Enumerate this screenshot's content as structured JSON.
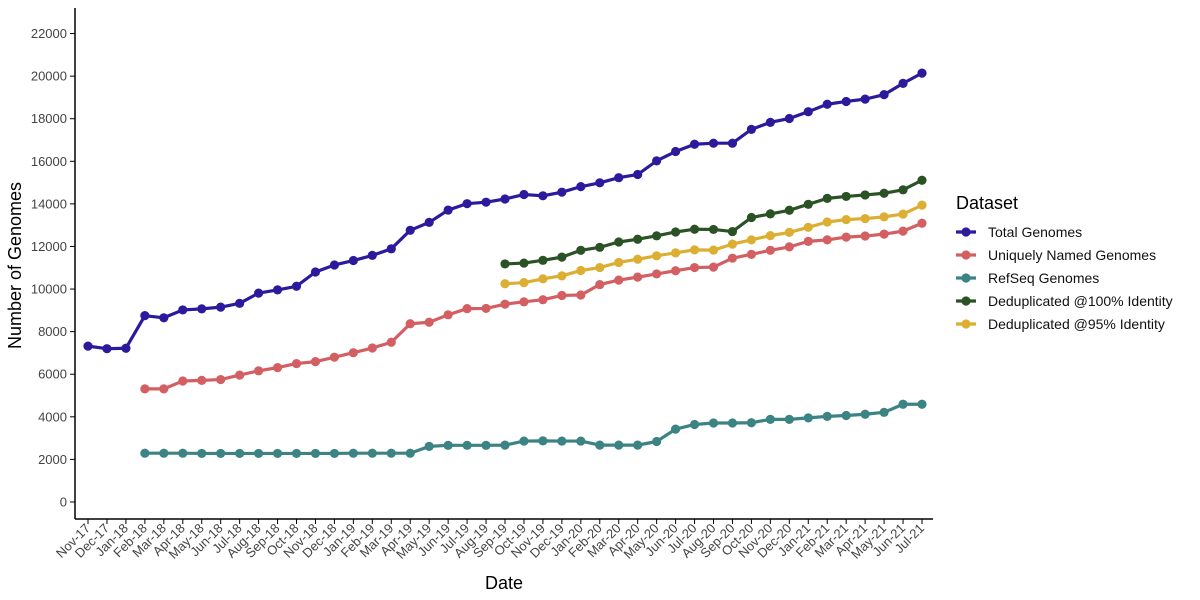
{
  "chart_data": {
    "type": "line",
    "title": "",
    "xlabel": "Date",
    "ylabel": "Number of Genomes",
    "ylim": [
      -800,
      23200
    ],
    "yticks": [
      0,
      2000,
      4000,
      6000,
      8000,
      10000,
      12000,
      14000,
      16000,
      18000,
      20000,
      22000
    ],
    "grid": false,
    "legend": {
      "title": "Dataset",
      "placement": "right"
    },
    "categories": [
      "Nov-17",
      "Dec-17",
      "Jan-18",
      "Feb-18",
      "Mar-18",
      "Apr-18",
      "May-18",
      "Jun-18",
      "Jul-18",
      "Aug-18",
      "Sep-18",
      "Oct-18",
      "Nov-18",
      "Dec-18",
      "Jan-19",
      "Feb-19",
      "Mar-19",
      "Apr-19",
      "May-19",
      "Jun-19",
      "Jul-19",
      "Aug-19",
      "Sep-19",
      "Oct-19",
      "Nov-19",
      "Dec-19",
      "Jan-20",
      "Feb-20",
      "Mar-20",
      "Apr-20",
      "May-20",
      "Jun-20",
      "Jul-20",
      "Aug-20",
      "Sep-20",
      "Oct-20",
      "Nov-20",
      "Dec-20",
      "Jan-21",
      "Feb-21",
      "Mar-21",
      "Apr-21",
      "May-21",
      "Jun-21",
      "Jul-21"
    ],
    "series": [
      {
        "name": "Total Genomes",
        "color": "#2b1b9c",
        "values": [
          7320,
          7200,
          7220,
          8750,
          8650,
          9020,
          9070,
          9150,
          9330,
          9810,
          9960,
          10130,
          10800,
          11130,
          11340,
          11580,
          11890,
          12760,
          13130,
          13710,
          14010,
          14080,
          14230,
          14440,
          14380,
          14550,
          14810,
          14990,
          15230,
          15380,
          16020,
          16460,
          16800,
          16850,
          16850,
          17500,
          17830,
          18010,
          18330,
          18680,
          18810,
          18920,
          19130,
          19660,
          20140
        ]
      },
      {
        "name": "Uniquely Named Genomes",
        "color": "#d45f63",
        "values": [
          null,
          null,
          null,
          5310,
          5310,
          5680,
          5710,
          5750,
          5960,
          6160,
          6310,
          6500,
          6590,
          6800,
          7010,
          7230,
          7500,
          8370,
          8440,
          8790,
          9080,
          9090,
          9290,
          9400,
          9500,
          9700,
          9720,
          10210,
          10420,
          10560,
          10710,
          10860,
          11010,
          11030,
          11450,
          11630,
          11820,
          11980,
          12240,
          12310,
          12440,
          12490,
          12580,
          12720,
          13090
        ]
      },
      {
        "name": "RefSeq Genomes",
        "color": "#3c8383",
        "values": [
          null,
          null,
          null,
          2290,
          2290,
          2290,
          2280,
          2280,
          2280,
          2280,
          2280,
          2280,
          2280,
          2280,
          2290,
          2290,
          2290,
          2290,
          2610,
          2660,
          2660,
          2660,
          2670,
          2860,
          2870,
          2860,
          2860,
          2670,
          2670,
          2670,
          2840,
          3420,
          3640,
          3710,
          3710,
          3720,
          3880,
          3880,
          3950,
          4020,
          4060,
          4120,
          4210,
          4590,
          4590
        ]
      },
      {
        "name": "Deduplicated @100% Identity",
        "color": "#2a5225",
        "values": [
          null,
          null,
          null,
          null,
          null,
          null,
          null,
          null,
          null,
          null,
          null,
          null,
          null,
          null,
          null,
          null,
          null,
          null,
          null,
          null,
          null,
          null,
          11180,
          11220,
          11350,
          11500,
          11820,
          11960,
          12210,
          12340,
          12500,
          12680,
          12810,
          12800,
          12700,
          13360,
          13530,
          13700,
          13980,
          14260,
          14350,
          14420,
          14500,
          14660,
          15110
        ]
      },
      {
        "name": "Deduplicated @95% Identity",
        "color": "#dcae32",
        "values": [
          null,
          null,
          null,
          null,
          null,
          null,
          null,
          null,
          null,
          null,
          null,
          null,
          null,
          null,
          null,
          null,
          null,
          null,
          null,
          null,
          null,
          null,
          10250,
          10300,
          10480,
          10620,
          10870,
          11010,
          11250,
          11400,
          11560,
          11700,
          11840,
          11830,
          12110,
          12310,
          12510,
          12660,
          12900,
          13150,
          13260,
          13310,
          13390,
          13520,
          13940
        ]
      }
    ]
  }
}
